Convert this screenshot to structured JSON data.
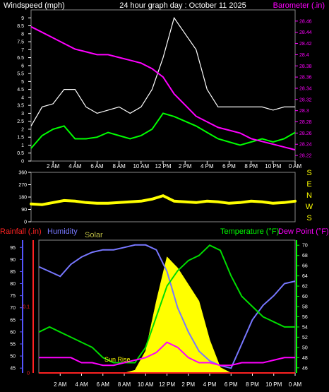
{
  "colors": {
    "wind_gust": "#ffffff",
    "wind_avg": "#00ff00",
    "barometer": "#ff00ff",
    "direction": "#ffff00",
    "rain": "#ff2222",
    "humidity": "#7777ff",
    "solar": "#ffff00",
    "temperature": "#00dd00",
    "dewpoint": "#ff00ff",
    "axis_left_bottom": "#5555ff",
    "axis_right_bottom": "#00ff00"
  },
  "chart_data": [
    {
      "type": "line",
      "title": "24 hour graph day : October 11 2025",
      "ylabel": "Windspeed (mph)",
      "y2label": "Barometer (.in)",
      "ylim": [
        0,
        9.5
      ],
      "y2lim": [
        28.21,
        28.48
      ],
      "yticks": [
        "0",
        "0.5",
        "1",
        "1.5",
        "2",
        "2.5",
        "3",
        "3.5",
        "4",
        "4.5",
        "5",
        "5.5",
        "6",
        "6.5",
        "7",
        "7.5",
        "8",
        "8.5",
        "9"
      ],
      "y2ticks": [
        "28.22",
        "28.24",
        "28.26",
        "28.28",
        "28.3",
        "28.32",
        "28.34",
        "28.36",
        "28.38",
        "28.4",
        "28.42",
        "28.44",
        "28.46"
      ],
      "x_ticks": [
        "2 AM",
        "4 AM",
        "6 AM",
        "8 AM",
        "10 AM",
        "12 PM",
        "2 PM",
        "4 PM",
        "6 PM",
        "8 PM",
        "10 PM",
        "0 AM"
      ],
      "x": [
        0,
        1,
        2,
        3,
        4,
        5,
        6,
        7,
        8,
        9,
        10,
        11,
        12,
        13,
        14,
        15,
        16,
        17,
        18,
        19,
        20,
        21,
        22,
        23,
        24
      ],
      "series": [
        {
          "key": "gust",
          "values": [
            2.2,
            3.4,
            3.6,
            4.5,
            4.5,
            3.4,
            3.0,
            3.2,
            3.4,
            3.0,
            3.4,
            4.5,
            6.5,
            9.0,
            8.0,
            7.0,
            4.5,
            3.4,
            3.4,
            3.4,
            3.4,
            3.4,
            3.2,
            3.4,
            3.4
          ]
        },
        {
          "key": "avg",
          "values": [
            0.8,
            1.6,
            2.0,
            2.2,
            1.4,
            1.4,
            1.5,
            1.8,
            1.6,
            1.4,
            1.6,
            2.0,
            3.0,
            2.8,
            2.5,
            2.2,
            1.8,
            1.4,
            1.2,
            1.0,
            1.2,
            1.4,
            1.2,
            1.4,
            1.8
          ]
        },
        {
          "key": "baro",
          "values": [
            28.45,
            28.44,
            28.43,
            28.42,
            28.41,
            28.405,
            28.4,
            28.4,
            28.395,
            28.39,
            28.385,
            28.375,
            28.36,
            28.33,
            28.31,
            28.29,
            28.28,
            28.27,
            28.265,
            28.26,
            28.25,
            28.245,
            28.24,
            28.235,
            28.23
          ]
        }
      ]
    },
    {
      "type": "scatter",
      "ylim": [
        0,
        360
      ],
      "yticks": [
        "0",
        "90",
        "180",
        "270",
        "360"
      ],
      "compass": [
        "S",
        "E",
        "N",
        "W",
        "S"
      ],
      "x": [
        0,
        1,
        2,
        3,
        4,
        5,
        6,
        7,
        8,
        9,
        10,
        11,
        12,
        13,
        14,
        15,
        16,
        17,
        18,
        19,
        20,
        21,
        22,
        23,
        24
      ],
      "values": [
        130,
        125,
        140,
        155,
        150,
        140,
        135,
        135,
        140,
        145,
        150,
        165,
        190,
        150,
        145,
        140,
        150,
        145,
        135,
        140,
        150,
        145,
        135,
        140,
        150
      ]
    },
    {
      "type": "line",
      "labels": {
        "rain": "Rainfall (.in)",
        "humidity": "Humidity",
        "solar": "Solar",
        "temperature": "Temperature (°F)",
        "dewpoint": "Dew Point (°F)"
      },
      "left_ticks": [
        "45",
        "50",
        "55",
        "60",
        "65",
        "70",
        "75",
        "80",
        "85",
        "90",
        "95"
      ],
      "left_lim": [
        43,
        98
      ],
      "right_ticks": [
        "46",
        "48",
        "50",
        "52",
        "54",
        "56",
        "58",
        "60",
        "62",
        "64",
        "66",
        "68",
        "70"
      ],
      "right_lim": [
        45,
        71
      ],
      "rain_ticks": [
        "0",
        "0.1"
      ],
      "rain_lim": [
        0,
        0.2
      ],
      "annotation": "Sun Rise",
      "x_ticks": [
        "2 AM",
        "4 AM",
        "6 AM",
        "8 AM",
        "10 AM",
        "12 PM",
        "2 PM",
        "4 PM",
        "6 PM",
        "8 PM",
        "10 PM",
        "0 AM"
      ],
      "x": [
        0,
        1,
        2,
        3,
        4,
        5,
        6,
        7,
        8,
        9,
        10,
        11,
        12,
        13,
        14,
        15,
        16,
        17,
        18,
        19,
        20,
        21,
        22,
        23,
        24
      ],
      "series": [
        {
          "key": "humidity",
          "values": [
            87,
            85,
            83,
            88,
            91,
            93,
            94,
            94,
            95,
            96,
            96,
            94,
            85,
            70,
            60,
            52,
            48,
            46,
            45,
            55,
            65,
            71,
            75,
            80,
            81
          ]
        },
        {
          "key": "temperature",
          "values": [
            53,
            54,
            53,
            52,
            51,
            50,
            48,
            47,
            47,
            47,
            50,
            56,
            62,
            65,
            67,
            68,
            70,
            69,
            64,
            60,
            58,
            56,
            55,
            54,
            54
          ]
        },
        {
          "key": "dewpoint",
          "values": [
            48,
            48,
            48,
            48,
            47,
            47,
            46.5,
            46.5,
            47,
            47.5,
            48,
            49,
            51,
            50,
            48,
            47,
            47,
            46.5,
            46.5,
            47,
            47,
            47,
            47.5,
            48,
            48
          ]
        },
        {
          "key": "solar",
          "values": [
            0,
            0,
            0,
            0,
            0,
            0,
            0,
            0,
            0,
            10,
            80,
            260,
            420,
            380,
            320,
            260,
            120,
            20,
            0,
            0,
            0,
            0,
            0,
            0,
            0
          ]
        },
        {
          "key": "rain",
          "values": [
            0,
            0,
            0,
            0,
            0,
            0,
            0,
            0,
            0,
            0,
            0,
            0,
            0,
            0,
            0,
            0,
            0,
            0,
            0,
            0,
            0,
            0,
            0,
            0,
            0
          ]
        }
      ]
    }
  ]
}
